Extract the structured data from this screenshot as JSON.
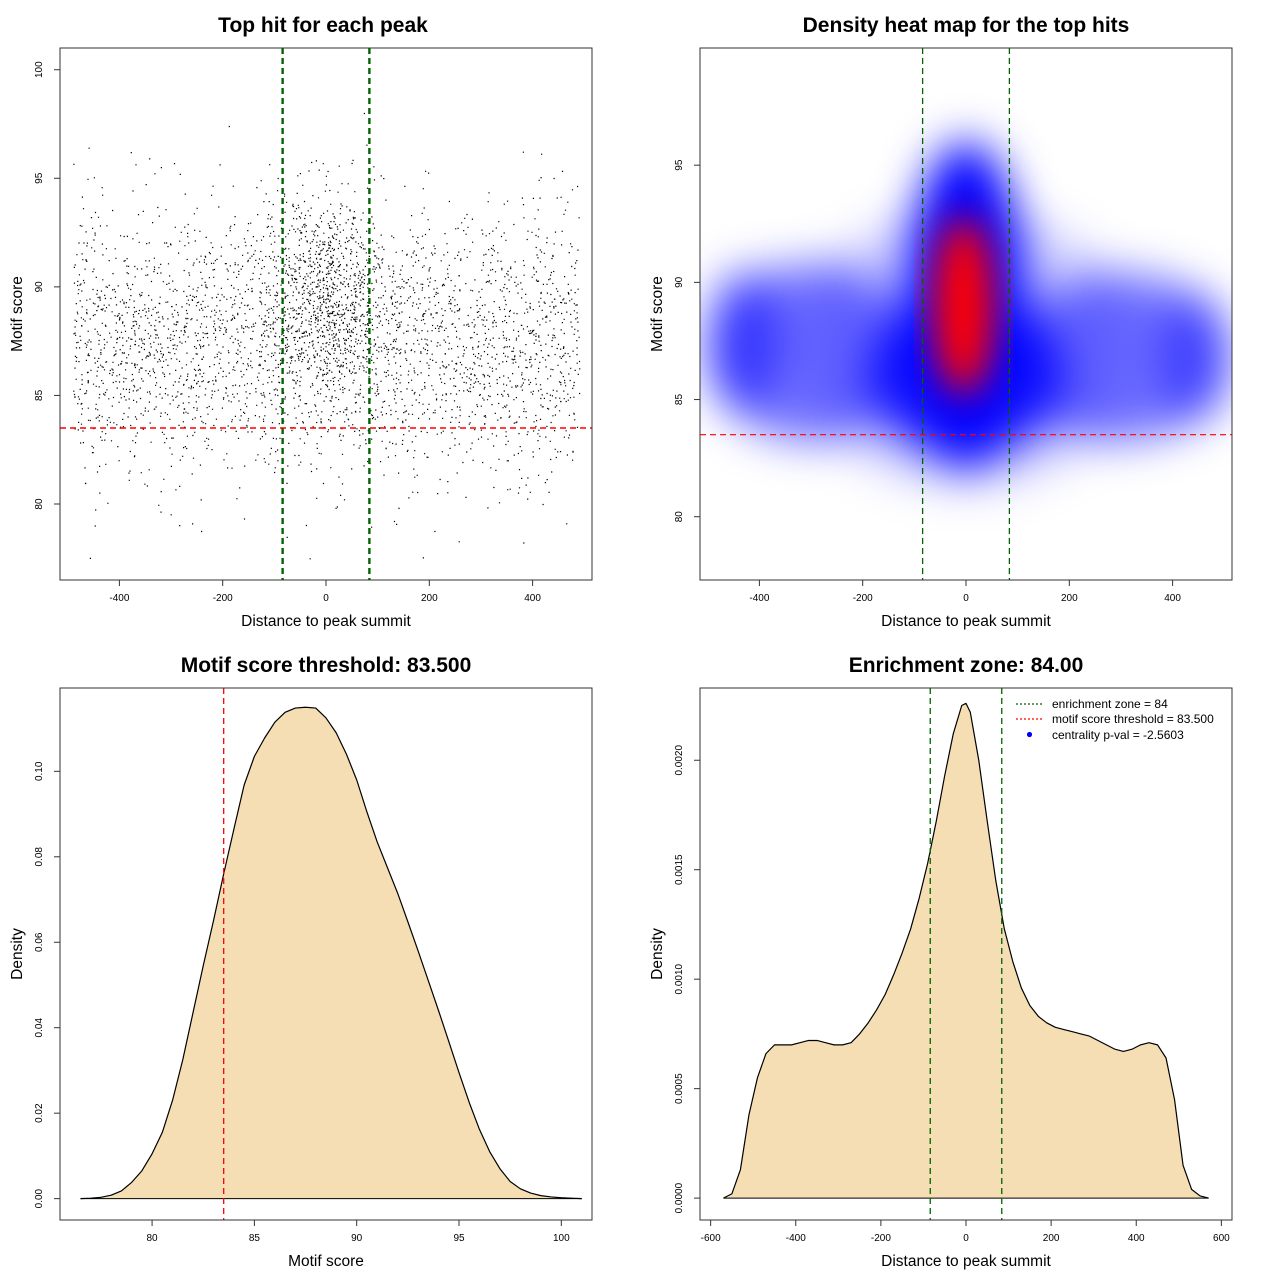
{
  "chart_data": [
    {
      "type": "scatter",
      "title": "Top hit for each peak",
      "xlabel": "Distance to peak summit",
      "ylabel": "Motif score",
      "xlim": [
        -515,
        515
      ],
      "ylim": [
        76.5,
        101
      ],
      "xticks": [
        -400,
        -200,
        0,
        200,
        400
      ],
      "yticks": [
        80,
        85,
        90,
        95,
        100
      ],
      "point_color": "#000000",
      "point_cloud": {
        "x_range": [
          -490,
          490
        ],
        "bulk_mean_score": 87.5,
        "bulk_sd": 3.0,
        "center_mean_score": 89.5,
        "center_sd": 2.5,
        "center_width_sd": 55
      },
      "vlines": [
        {
          "x": -84,
          "color": "#006400",
          "style": "dashed"
        },
        {
          "x": 84,
          "color": "#006400",
          "style": "dashed"
        }
      ],
      "hlines": [
        {
          "y": 83.5,
          "color": "#ff0000",
          "style": "dashed"
        }
      ]
    },
    {
      "type": "heatmap",
      "title": "Density heat map for the top hits",
      "xlabel": "Distance to peak summit",
      "ylabel": "Motif score",
      "xlim": [
        -515,
        515
      ],
      "ylim": [
        77.3,
        100
      ],
      "xticks": [
        -400,
        -200,
        0,
        200,
        400
      ],
      "yticks": [
        80,
        85,
        90,
        95
      ],
      "colors": [
        "#ffffff",
        "#0000ff",
        "#ff0000"
      ],
      "vlines": [
        {
          "x": -84,
          "color": "#006400",
          "style": "dashed"
        },
        {
          "x": 84,
          "color": "#006400",
          "style": "dashed"
        }
      ],
      "hlines": [
        {
          "y": 83.5,
          "color": "#ff0000",
          "style": "dashed"
        }
      ]
    },
    {
      "type": "area",
      "title": "Motif score threshold: 83.500",
      "xlabel": "Motif score",
      "ylabel": "Density",
      "xlim": [
        75.5,
        101.5
      ],
      "ylim": [
        -0.005,
        0.1195
      ],
      "xticks": [
        80,
        85,
        90,
        95,
        100
      ],
      "yticks": [
        0.0,
        0.02,
        0.04,
        0.06,
        0.08,
        0.1
      ],
      "ytick_labels": [
        "0.00",
        "0.02",
        "0.04",
        "0.06",
        "0.08",
        "0.10"
      ],
      "fill": "#f5deb3",
      "x": [
        76.5,
        77,
        77.5,
        78,
        78.5,
        79,
        79.5,
        80,
        80.5,
        81,
        81.5,
        82,
        82.5,
        83,
        83.5,
        84,
        84.5,
        85,
        85.5,
        86,
        86.5,
        87,
        87.5,
        88,
        88.5,
        89,
        89.5,
        90,
        90.5,
        91,
        91.5,
        92,
        92.5,
        93,
        93.5,
        94,
        94.5,
        95,
        95.5,
        96,
        96.5,
        97,
        97.5,
        98,
        98.5,
        99,
        99.5,
        100,
        100.5,
        101
      ],
      "y": [
        0.0,
        0.0001,
        0.0003,
        0.0008,
        0.0018,
        0.0038,
        0.0065,
        0.0105,
        0.0155,
        0.023,
        0.0325,
        0.0435,
        0.0545,
        0.065,
        0.076,
        0.0865,
        0.0968,
        0.1035,
        0.1078,
        0.1115,
        0.1138,
        0.1148,
        0.115,
        0.1148,
        0.1125,
        0.109,
        0.104,
        0.098,
        0.0905,
        0.0835,
        0.0775,
        0.0715,
        0.0648,
        0.058,
        0.051,
        0.044,
        0.0368,
        0.0295,
        0.0225,
        0.0162,
        0.011,
        0.007,
        0.004,
        0.0023,
        0.0013,
        0.0007,
        0.0004,
        0.0002,
        0.0001,
        0.0
      ],
      "vlines": [
        {
          "x": 83.5,
          "color": "#ff0000",
          "style": "dashed"
        }
      ]
    },
    {
      "type": "area",
      "title": "Enrichment zone: 84.00",
      "xlabel": "Distance to peak summit",
      "ylabel": "Density",
      "xlim": [
        -625,
        625
      ],
      "ylim": [
        -0.0001,
        0.00233
      ],
      "xticks": [
        -600,
        -400,
        -200,
        0,
        200,
        400,
        600
      ],
      "yticks": [
        0.0,
        0.0005,
        0.001,
        0.0015,
        0.002
      ],
      "ytick_labels": [
        "0.0000",
        "0.0005",
        "0.0010",
        "0.0015",
        "0.0020"
      ],
      "fill": "#f5deb3",
      "x": [
        -570,
        -550,
        -530,
        -510,
        -490,
        -470,
        -450,
        -430,
        -410,
        -390,
        -370,
        -350,
        -330,
        -310,
        -290,
        -270,
        -250,
        -230,
        -210,
        -190,
        -170,
        -150,
        -130,
        -110,
        -90,
        -70,
        -50,
        -30,
        -10,
        0,
        10,
        30,
        50,
        70,
        90,
        110,
        130,
        150,
        170,
        190,
        210,
        230,
        250,
        270,
        290,
        310,
        330,
        350,
        370,
        390,
        410,
        430,
        450,
        470,
        490,
        510,
        530,
        550,
        570
      ],
      "y": [
        0.0,
        2e-05,
        0.00013,
        0.00038,
        0.00055,
        0.00066,
        0.0007,
        0.0007,
        0.0007,
        0.00071,
        0.00072,
        0.00072,
        0.00071,
        0.0007,
        0.0007,
        0.00071,
        0.00075,
        0.0008,
        0.00086,
        0.00093,
        0.00102,
        0.00112,
        0.00123,
        0.00137,
        0.00153,
        0.00172,
        0.00193,
        0.00212,
        0.00225,
        0.00226,
        0.00222,
        0.002,
        0.00172,
        0.00145,
        0.00123,
        0.00108,
        0.00096,
        0.00088,
        0.00083,
        0.0008,
        0.00078,
        0.00077,
        0.00076,
        0.00075,
        0.00074,
        0.00072,
        0.0007,
        0.00068,
        0.00067,
        0.00068,
        0.0007,
        0.00071,
        0.0007,
        0.00064,
        0.00045,
        0.00015,
        4e-05,
        1e-05,
        0.0
      ],
      "vlines": [
        {
          "x": -84,
          "color": "#006400",
          "style": "dashed"
        },
        {
          "x": 84,
          "color": "#006400",
          "style": "dashed"
        }
      ],
      "legend": {
        "position": "top-right",
        "entries": [
          {
            "label": "enrichment zone = 84",
            "color": "#006400",
            "style": "dotted-line"
          },
          {
            "label": "motif score threshold = 83.500",
            "color": "#ff0000",
            "style": "dotted-line"
          },
          {
            "label": "centrality p-val = -2.5603",
            "color": "#0000ff",
            "style": "point"
          }
        ]
      }
    }
  ]
}
